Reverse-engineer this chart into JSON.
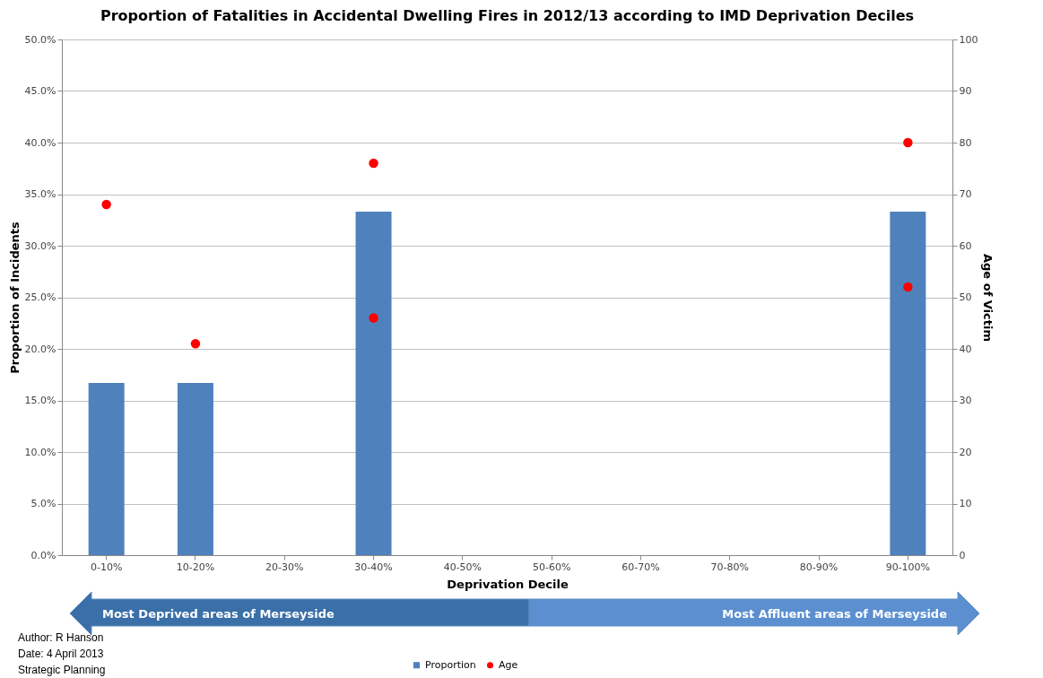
{
  "chart_data": {
    "type": "bar",
    "title": "Proportion of Fatalities in Accidental Dwelling Fires in 2012/13 according to IMD Deprivation Deciles",
    "xlabel": "Deprivation Decile",
    "ylabel": "Proportion of Incidents",
    "y2label": "Age of Victim",
    "categories": [
      "0-10%",
      "10-20%",
      "20-30%",
      "30-40%",
      "40-50%",
      "50-60%",
      "60-70%",
      "70-80%",
      "80-90%",
      "90-100%"
    ],
    "series": [
      {
        "name": "Proportion",
        "type": "bar",
        "color": "#4f81bd",
        "values": [
          16.7,
          16.7,
          0,
          33.3,
          0,
          0,
          0,
          0,
          0,
          33.3
        ]
      },
      {
        "name": "Age",
        "type": "scatter",
        "axis": "y2",
        "color": "#ff0000",
        "x": [
          "0-10%",
          "10-20%",
          "30-40%",
          "30-40%",
          "90-100%",
          "90-100%"
        ],
        "values": [
          68,
          41,
          76,
          46,
          80,
          52
        ]
      }
    ],
    "ylim": [
      0,
      50
    ],
    "yticks": [
      {
        "value": 0,
        "label": "0.0%"
      },
      {
        "value": 5,
        "label": "5.0%"
      },
      {
        "value": 10,
        "label": "10.0%"
      },
      {
        "value": 15,
        "label": "15.0%"
      },
      {
        "value": 20,
        "label": "20.0%"
      },
      {
        "value": 25,
        "label": "25.0%"
      },
      {
        "value": 30,
        "label": "30.0%"
      },
      {
        "value": 35,
        "label": "35.0%"
      },
      {
        "value": 40,
        "label": "40.0%"
      },
      {
        "value": 45,
        "label": "45.0%"
      },
      {
        "value": 50,
        "label": "50.0%"
      }
    ],
    "y2lim": [
      0,
      100
    ],
    "y2ticks": [
      0,
      10,
      20,
      30,
      40,
      50,
      60,
      70,
      80,
      90,
      100
    ],
    "grid": "y",
    "legend": "bottom",
    "marker": "circle",
    "annotations": [
      "Most Deprived areas of Merseyside",
      "Most Affluent areas of Merseyside",
      "Author:  R Hanson",
      "Date: 4 April 2013",
      "Strategic Planning"
    ]
  }
}
